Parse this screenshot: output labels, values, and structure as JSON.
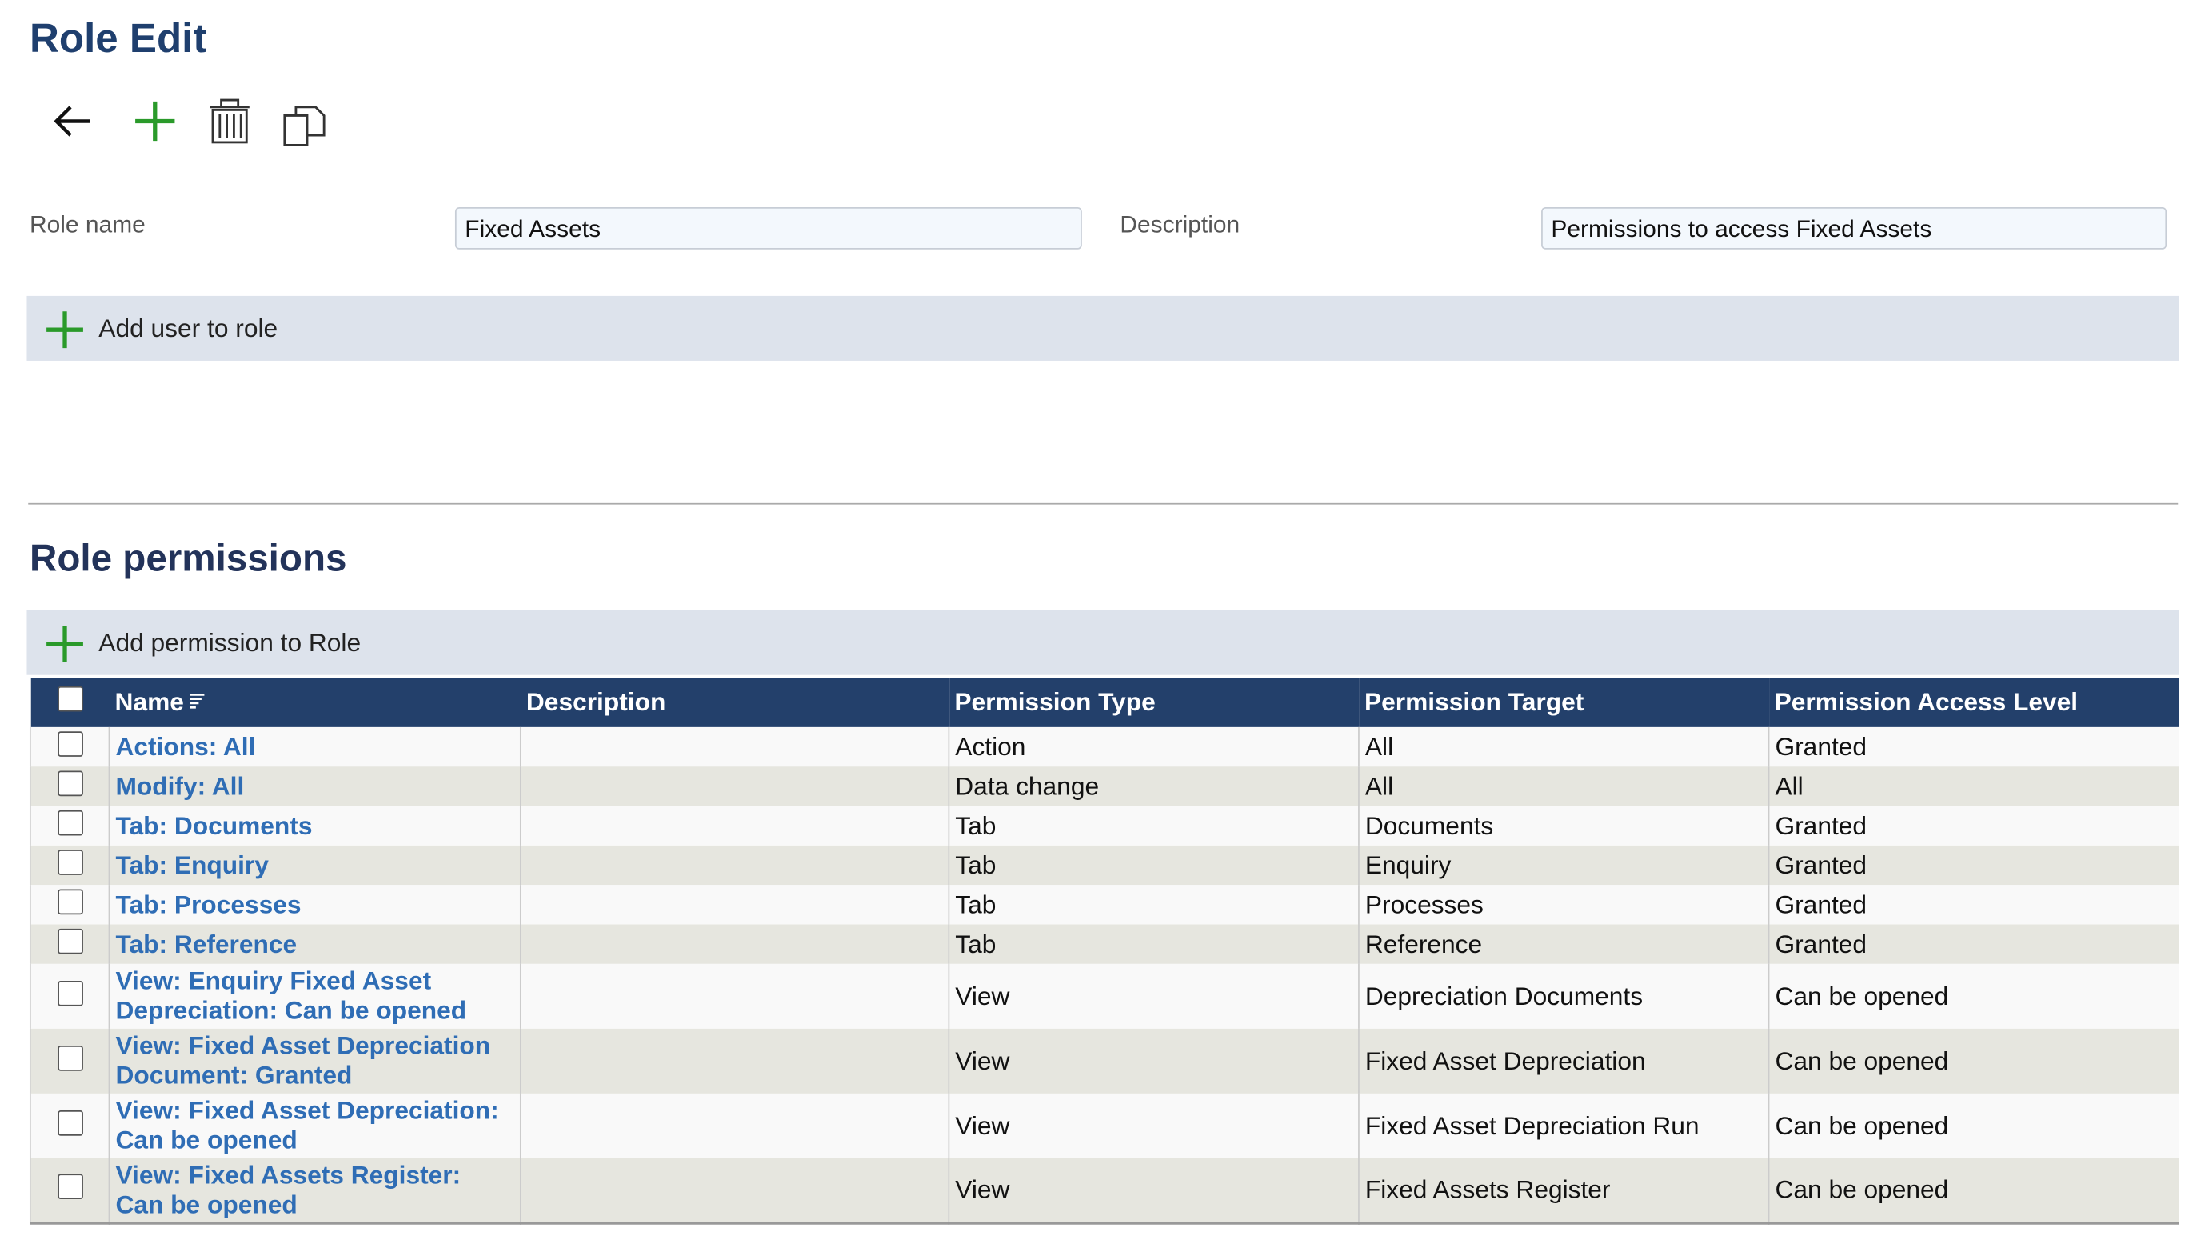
{
  "header": {
    "title": "Role Edit"
  },
  "form": {
    "role_name_label": "Role name",
    "role_name_value": "Fixed Assets",
    "description_label": "Description",
    "description_value": "Permissions to access Fixed Assets"
  },
  "add_user_button": "Add user to role",
  "permissions": {
    "title": "Role permissions",
    "add_button": "Add permission to Role",
    "table": {
      "columns": [
        "Name",
        "Description",
        "Permission Type",
        "Permission Target",
        "Permission Access Level"
      ],
      "rows": [
        {
          "name": "Actions: All",
          "type": "Action",
          "target": "All",
          "level": "Granted"
        },
        {
          "name": "Modify: All",
          "type": "Data change",
          "target": "All",
          "level": "All"
        },
        {
          "name": "Tab: Documents",
          "type": "Tab",
          "target": "Documents",
          "level": "Granted"
        },
        {
          "name": "Tab: Enquiry",
          "type": "Tab",
          "target": "Enquiry",
          "level": "Granted"
        },
        {
          "name": "Tab: Processes",
          "type": "Tab",
          "target": "Processes",
          "level": "Granted"
        },
        {
          "name": "Tab: Reference",
          "type": "Tab",
          "target": "Reference",
          "level": "Granted"
        },
        {
          "name": "View: Enquiry Fixed Asset Depreciation: Can be opened",
          "type": "View",
          "target": "Depreciation Documents",
          "level": "Can be opened"
        },
        {
          "name": "View: Fixed Asset Depreciation Document: Granted",
          "type": "View",
          "target": "Fixed Asset Depreciation",
          "level": "Can be opened"
        },
        {
          "name": "View: Fixed Asset Depreciation: Can be opened",
          "type": "View",
          "target": "Fixed Asset Depreciation Run",
          "level": "Can be opened"
        },
        {
          "name": "View: Fixed Assets Register: Can be opened",
          "type": "View",
          "target": "Fixed Assets Register",
          "level": "Can be opened"
        }
      ]
    }
  }
}
